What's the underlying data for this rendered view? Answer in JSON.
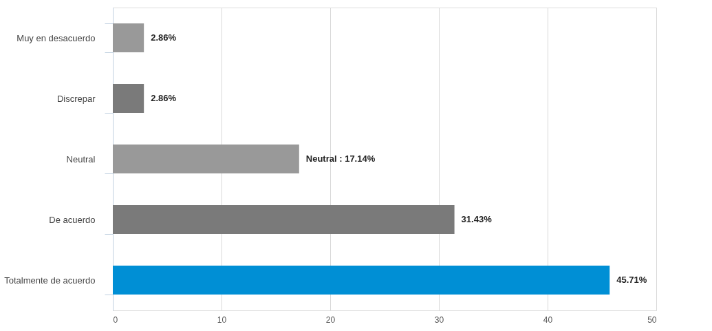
{
  "chart_data": {
    "type": "bar",
    "orientation": "horizontal",
    "categories": [
      "Muy en desacuerdo",
      "Discrepar",
      "Neutral",
      "De acuerdo",
      "Totalmente de acuerdo"
    ],
    "values": [
      2.86,
      2.86,
      17.14,
      31.43,
      45.71
    ],
    "colors": [
      "#999999",
      "#7a7a7a",
      "#999999",
      "#7a7a7a",
      "#008fd5"
    ],
    "value_labels": [
      "2.86%",
      "2.86%",
      "Neutral : 17.14%",
      "31.43%",
      "45.71%"
    ],
    "xlim": [
      0,
      50
    ],
    "xticks": [
      0,
      10,
      20,
      30,
      40,
      50
    ],
    "grid": "x",
    "legend": false
  }
}
